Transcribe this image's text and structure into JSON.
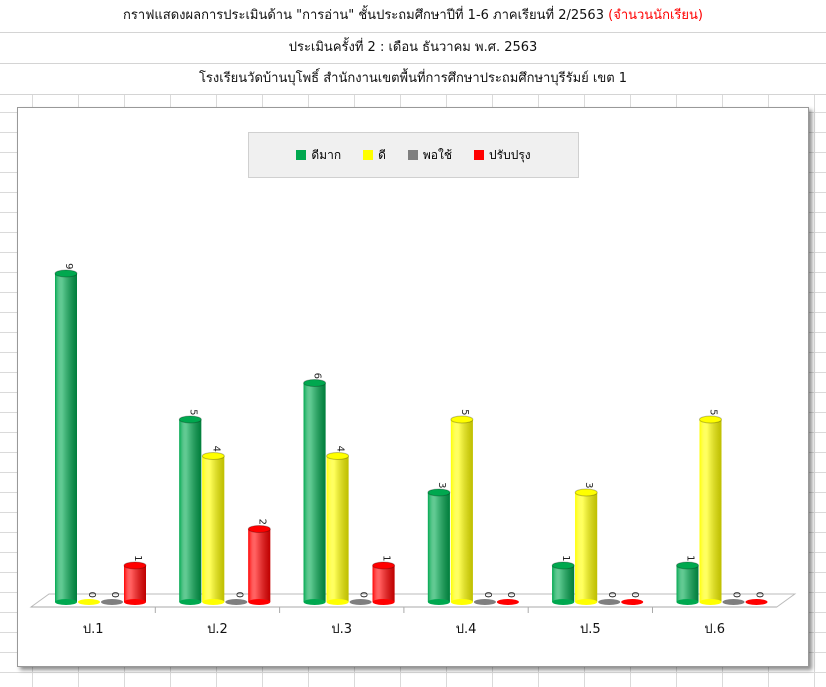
{
  "header": {
    "title_main": "กราฟแสดงผลการประเมินด้าน \"การอ่าน\"  ชั้นประถมศึกษาปีที่ 1-6 ภาคเรียนที่ 2/2563",
    "title_note": "(จำนวนนักเรียน)",
    "subtitle": "ประเมินครั้งที่ 2 : เดือน ธันวาคม  พ.ศ. 2563",
    "school": "โรงเรียนวัดบ้านบุโพธิ์        สำนักงานเขตพื้นที่การศึกษาประถมศึกษาบุรีรัมย์ เขต 1"
  },
  "chart_data": {
    "type": "bar",
    "categories": [
      "ป.1",
      "ป.2",
      "ป.3",
      "ป.4",
      "ป.5",
      "ป.6"
    ],
    "series": [
      {
        "name": "ดีมาก",
        "color": "#00a84f",
        "values": [
          9,
          5,
          6,
          3,
          1,
          1
        ]
      },
      {
        "name": "ดี",
        "color": "#ffff00",
        "values": [
          0,
          4,
          4,
          5,
          3,
          5
        ]
      },
      {
        "name": "พอใช้",
        "color": "#7f7f7f",
        "values": [
          0,
          0,
          0,
          0,
          0,
          0
        ]
      },
      {
        "name": "ปรับปรุง",
        "color": "#ff0000",
        "values": [
          1,
          2,
          1,
          0,
          0,
          0
        ]
      }
    ],
    "legend": "top",
    "ylim": [
      0,
      9
    ]
  }
}
